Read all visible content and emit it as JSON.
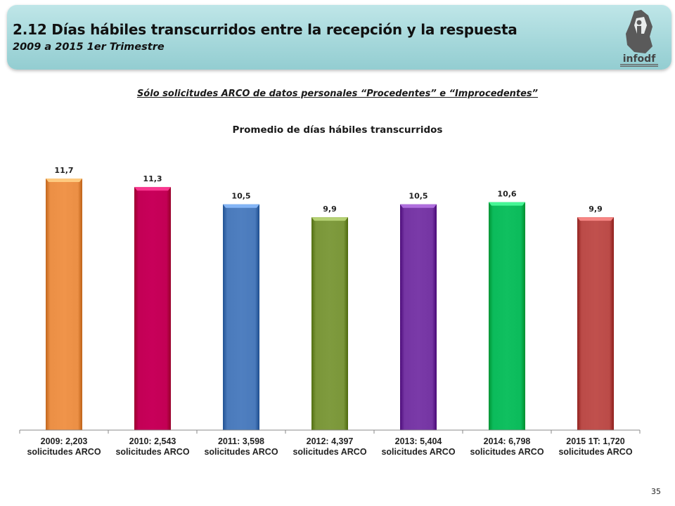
{
  "header": {
    "title": "2.12 Días hábiles transcurridos entre la recepción y la respuesta",
    "subtitle": "2009 a 2015 1er Trimestre",
    "logo_text": "infodf",
    "band_color": "#a6d8db"
  },
  "note": "Sólo solicitudes ARCO de datos personales “Procedentes” e “Improcedentes”",
  "page_number": "35",
  "chart_data": {
    "type": "bar",
    "title": "Promedio de días hábiles transcurridos",
    "categories": [
      [
        "2009: 2,203",
        "solicitudes ARCO"
      ],
      [
        "2010: 2,543",
        "solicitudes ARCO"
      ],
      [
        "2011: 3,598",
        "solicitudes ARCO"
      ],
      [
        "2012: 4,397",
        "solicitudes ARCO"
      ],
      [
        "2013: 5,404",
        "solicitudes ARCO"
      ],
      [
        "2014: 6,798",
        "solicitudes ARCO"
      ],
      [
        "2015 1T: 1,720",
        "solicitudes ARCO"
      ]
    ],
    "values": [
      11.7,
      11.3,
      10.5,
      9.9,
      10.5,
      10.6,
      9.9
    ],
    "data_labels": [
      "11,7",
      "11,3",
      "10,5",
      "9,9",
      "10,5",
      "10,6",
      "9,9"
    ],
    "colors": [
      "#f0944a",
      "#c8005a",
      "#4f7fc0",
      "#7f9b3e",
      "#7a3aa8",
      "#10c060",
      "#c0504d"
    ],
    "ylim": [
      0,
      11.7
    ],
    "grid": false,
    "legend": "none",
    "xlabel": "",
    "ylabel": ""
  }
}
